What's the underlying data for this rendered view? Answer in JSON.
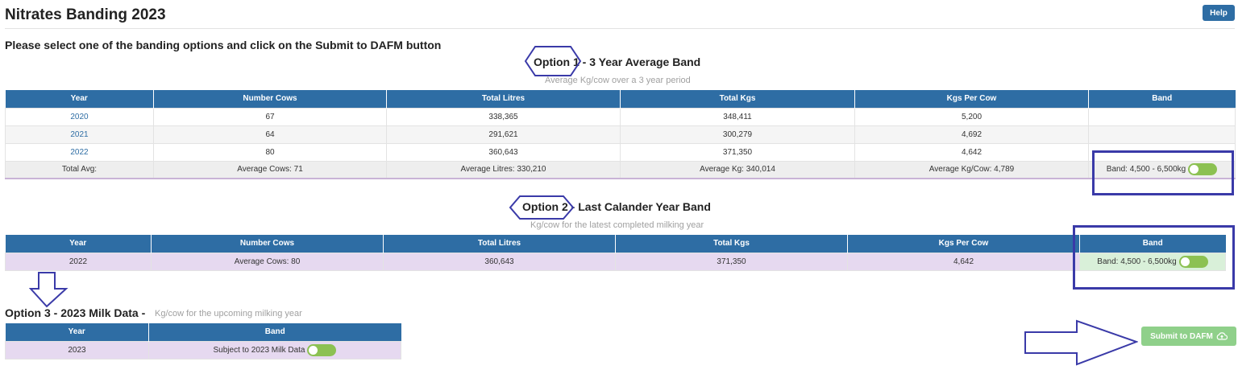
{
  "page": {
    "title": "Nitrates Banding 2023",
    "help_label": "Help",
    "instruction": "Please select one of the banding options and click on the Submit to DAFM button"
  },
  "option1": {
    "heading": "Option 1 - 3 Year Average Band",
    "subheading": "Average Kg/cow over a 3 year period",
    "columns": [
      "Year",
      "Number Cows",
      "Total Litres",
      "Total Kgs",
      "Kgs Per Cow",
      "Band"
    ],
    "rows": [
      {
        "year": "2020",
        "cows": "67",
        "litres": "338,365",
        "kgs": "348,411",
        "per_cow": "5,200"
      },
      {
        "year": "2021",
        "cows": "64",
        "litres": "291,621",
        "kgs": "300,279",
        "per_cow": "4,692"
      },
      {
        "year": "2022",
        "cows": "80",
        "litres": "360,643",
        "kgs": "371,350",
        "per_cow": "4,642"
      }
    ],
    "total": {
      "label": "Total Avg:",
      "cows": "Average Cows: 71",
      "litres": "Average Litres: 330,210",
      "kgs": "Average Kg: 340,014",
      "per_cow": "Average Kg/Cow: 4,789",
      "band": "Band: 4,500 - 6,500kg"
    }
  },
  "option2": {
    "heading": "Option 2 - Last Calander Year Band",
    "subheading": "Kg/cow for the latest completed milking year",
    "columns": [
      "Year",
      "Number Cows",
      "Total Litres",
      "Total Kgs",
      "Kgs Per Cow",
      "Band"
    ],
    "row": {
      "year": "2022",
      "cows": "Average Cows: 80",
      "litres": "360,643",
      "kgs": "371,350",
      "per_cow": "4,642",
      "band": "Band: 4,500 - 6,500kg"
    }
  },
  "option3": {
    "heading": "Option 3 - 2023 Milk Data -",
    "subheading": "Kg/cow for the upcoming milking year",
    "columns": [
      "Year",
      "Band"
    ],
    "row": {
      "year": "2023",
      "band": "Subject to 2023 Milk Data"
    }
  },
  "submit": {
    "label": "Submit to DAFM"
  },
  "colors": {
    "header_blue": "#2e6da4",
    "toggle_green": "#8cc152",
    "annotation": "#3a3aa8",
    "highlight_purple": "#e6d9f0"
  }
}
